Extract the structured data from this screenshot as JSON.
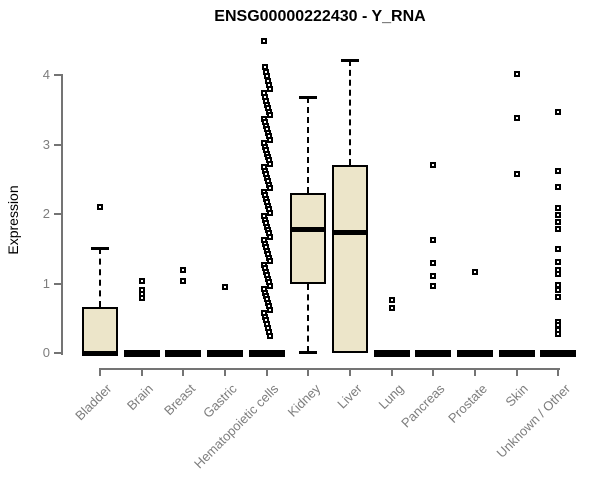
{
  "title": "ENSG00000222430 - Y_RNA",
  "ylabel": "Expression",
  "colors": {
    "box_fill": "#ECE5C9",
    "box_stroke": "#000000",
    "axis_line": "#747474",
    "axis_text": "#7d7d7d",
    "title_text": "#000000",
    "background": "#ffffff"
  },
  "chart_data": {
    "type": "boxplot",
    "title": "ENSG00000222430 - Y_RNA",
    "xlabel": "",
    "ylabel": "Expression",
    "ylim": [
      0,
      4.6
    ],
    "yticks": [
      "0",
      "1",
      "2",
      "3",
      "4"
    ],
    "grid": false,
    "legend": "none",
    "categories": [
      "Bladder",
      "Brain",
      "Breast",
      "Gastric",
      "Hematopoietic cells",
      "Kidney",
      "Liver",
      "Lung",
      "Pancreas",
      "Prostate",
      "Skin",
      "Unknown / Other"
    ],
    "series": [
      {
        "label": "Bladder",
        "q1": 0,
        "median": 0,
        "q3": 0.66,
        "whisker_low": 0,
        "whisker_high": 1.51,
        "outliers": [
          2.1
        ]
      },
      {
        "label": "Brain",
        "q1": 0,
        "median": 0,
        "q3": 0,
        "whisker_low": 0,
        "whisker_high": 0,
        "outliers": [
          1.03,
          0.91,
          0.85,
          0.79
        ]
      },
      {
        "label": "Breast",
        "q1": 0,
        "median": 0,
        "q3": 0,
        "whisker_low": 0,
        "whisker_high": 0,
        "outliers": [
          1.2,
          1.03
        ]
      },
      {
        "label": "Gastric",
        "q1": 0,
        "median": 0,
        "q3": 0,
        "whisker_low": 0,
        "whisker_high": 0,
        "outliers": [
          0.95
        ]
      },
      {
        "label": "Hematopoietic cells",
        "q1": 0,
        "median": 0,
        "q3": 0,
        "whisker_low": 0,
        "whisker_high": 0,
        "outliers": [
          4.49,
          4.12,
          4.05,
          3.98,
          3.92,
          3.86,
          3.8,
          3.74,
          3.68,
          3.62,
          3.57,
          3.52,
          3.47,
          3.42,
          3.37,
          3.32,
          3.27,
          3.22,
          3.17,
          3.12,
          3.07,
          3.02,
          2.97,
          2.92,
          2.87,
          2.82,
          2.77,
          2.72,
          2.67,
          2.62,
          2.57,
          2.52,
          2.47,
          2.42,
          2.37,
          2.32,
          2.27,
          2.22,
          2.17,
          2.12,
          2.07,
          2.02,
          1.97,
          1.92,
          1.87,
          1.82,
          1.77,
          1.72,
          1.67,
          1.62,
          1.57,
          1.52,
          1.47,
          1.42,
          1.37,
          1.32,
          1.27,
          1.22,
          1.17,
          1.12,
          1.07,
          1.02,
          0.97,
          0.92,
          0.87,
          0.82,
          0.77,
          0.72,
          0.67,
          0.62,
          0.57,
          0.52,
          0.47,
          0.42,
          0.36,
          0.3,
          0.25
        ]
      },
      {
        "label": "Kidney",
        "q1": 0.99,
        "median": 1.78,
        "q3": 2.3,
        "whisker_low": 0.01,
        "whisker_high": 3.69,
        "outliers": []
      },
      {
        "label": "Liver",
        "q1": 0,
        "median": 1.74,
        "q3": 2.71,
        "whisker_low": 0,
        "whisker_high": 4.22,
        "outliers": []
      },
      {
        "label": "Lung",
        "q1": 0,
        "median": 0,
        "q3": 0,
        "whisker_low": 0,
        "whisker_high": 0,
        "outliers": [
          0.76,
          0.65
        ]
      },
      {
        "label": "Pancreas",
        "q1": 0,
        "median": 0,
        "q3": 0,
        "whisker_low": 0,
        "whisker_high": 0,
        "outliers": [
          2.71,
          1.63,
          1.3,
          1.11,
          0.96
        ]
      },
      {
        "label": "Prostate",
        "q1": 0,
        "median": 0,
        "q3": 0,
        "whisker_low": 0,
        "whisker_high": 0,
        "outliers": [
          1.16
        ]
      },
      {
        "label": "Skin",
        "q1": 0,
        "median": 0,
        "q3": 0,
        "whisker_low": 0,
        "whisker_high": 0,
        "outliers": [
          4.02,
          3.38,
          2.58
        ]
      },
      {
        "label": "Unknown / Other",
        "q1": 0,
        "median": 0,
        "q3": 0,
        "whisker_low": 0,
        "whisker_high": 0,
        "outliers": [
          3.47,
          2.62,
          2.39,
          2.08,
          1.99,
          1.89,
          1.79,
          1.49,
          1.31,
          1.19,
          1.14,
          0.98,
          0.91,
          0.81,
          0.45,
          0.4,
          0.33,
          0.28
        ]
      }
    ]
  }
}
